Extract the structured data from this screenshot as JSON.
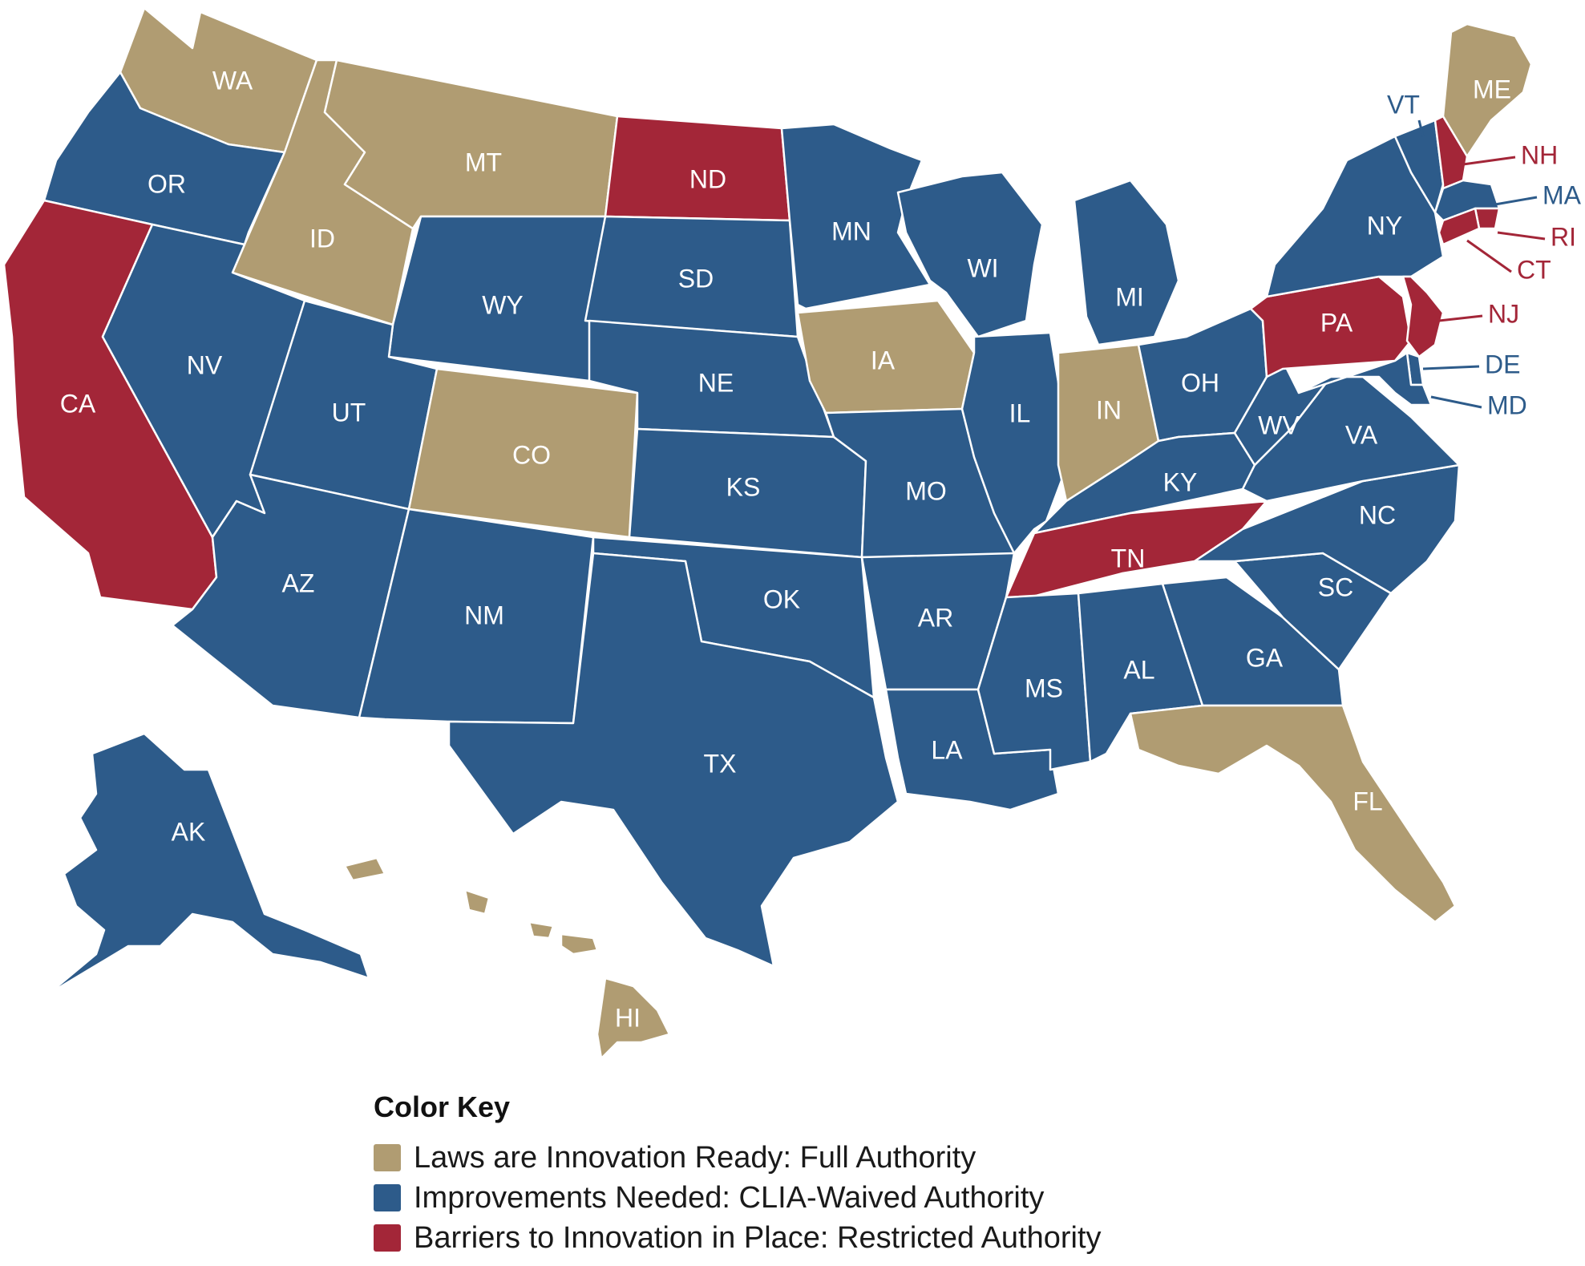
{
  "colors": {
    "full": "#b09c72",
    "waived": "#2d5b8a",
    "restricted": "#a32638"
  },
  "states": [
    {
      "abbr": "WA",
      "category": "full"
    },
    {
      "abbr": "OR",
      "category": "waived"
    },
    {
      "abbr": "CA",
      "category": "restricted"
    },
    {
      "abbr": "ID",
      "category": "full"
    },
    {
      "abbr": "NV",
      "category": "waived"
    },
    {
      "abbr": "MT",
      "category": "full"
    },
    {
      "abbr": "WY",
      "category": "waived"
    },
    {
      "abbr": "UT",
      "category": "waived"
    },
    {
      "abbr": "CO",
      "category": "full"
    },
    {
      "abbr": "AZ",
      "category": "waived"
    },
    {
      "abbr": "NM",
      "category": "waived"
    },
    {
      "abbr": "ND",
      "category": "restricted"
    },
    {
      "abbr": "SD",
      "category": "waived"
    },
    {
      "abbr": "NE",
      "category": "waived"
    },
    {
      "abbr": "KS",
      "category": "waived"
    },
    {
      "abbr": "OK",
      "category": "waived"
    },
    {
      "abbr": "TX",
      "category": "waived"
    },
    {
      "abbr": "MN",
      "category": "waived"
    },
    {
      "abbr": "IA",
      "category": "full"
    },
    {
      "abbr": "MO",
      "category": "waived"
    },
    {
      "abbr": "AR",
      "category": "waived"
    },
    {
      "abbr": "LA",
      "category": "waived"
    },
    {
      "abbr": "WI",
      "category": "waived"
    },
    {
      "abbr": "IL",
      "category": "waived"
    },
    {
      "abbr": "MI",
      "category": "waived"
    },
    {
      "abbr": "IN",
      "category": "full"
    },
    {
      "abbr": "OH",
      "category": "waived"
    },
    {
      "abbr": "KY",
      "category": "waived"
    },
    {
      "abbr": "TN",
      "category": "restricted"
    },
    {
      "abbr": "MS",
      "category": "waived"
    },
    {
      "abbr": "AL",
      "category": "waived"
    },
    {
      "abbr": "GA",
      "category": "waived"
    },
    {
      "abbr": "FL",
      "category": "full"
    },
    {
      "abbr": "SC",
      "category": "waived"
    },
    {
      "abbr": "NC",
      "category": "waived"
    },
    {
      "abbr": "VA",
      "category": "waived"
    },
    {
      "abbr": "WV",
      "category": "waived"
    },
    {
      "abbr": "PA",
      "category": "restricted"
    },
    {
      "abbr": "NY",
      "category": "waived"
    },
    {
      "abbr": "VT",
      "category": "waived"
    },
    {
      "abbr": "NH",
      "category": "restricted"
    },
    {
      "abbr": "ME",
      "category": "full"
    },
    {
      "abbr": "MA",
      "category": "waived"
    },
    {
      "abbr": "RI",
      "category": "restricted"
    },
    {
      "abbr": "CT",
      "category": "restricted"
    },
    {
      "abbr": "NJ",
      "category": "restricted"
    },
    {
      "abbr": "DE",
      "category": "waived"
    },
    {
      "abbr": "MD",
      "category": "waived"
    },
    {
      "abbr": "AK",
      "category": "waived"
    },
    {
      "abbr": "HI",
      "category": "full"
    }
  ],
  "legend": {
    "title": "Color Key",
    "items": [
      {
        "category": "full",
        "label": "Laws are Innovation Ready: Full Authority"
      },
      {
        "category": "waived",
        "label": "Improvements Needed: CLIA-Waived Authority"
      },
      {
        "category": "restricted",
        "label": "Barriers to Innovation in Place: Restricted Authority"
      }
    ]
  }
}
